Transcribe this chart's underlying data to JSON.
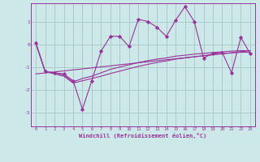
{
  "bg_color": "#cce8e8",
  "grid_color": "#aacccc",
  "line_color": "#993399",
  "xlabel": "Windchill (Refroidissement éolien,°C)",
  "xlabel_color": "#993399",
  "xticks": [
    0,
    1,
    2,
    3,
    4,
    5,
    6,
    7,
    8,
    9,
    10,
    11,
    12,
    13,
    14,
    15,
    16,
    17,
    18,
    19,
    20,
    21,
    22,
    23
  ],
  "yticks": [
    -3,
    -2,
    -1,
    0,
    1
  ],
  "ylim": [
    -3.6,
    1.8
  ],
  "xlim": [
    -0.5,
    23.5
  ],
  "series1_x": [
    0,
    1,
    2,
    3,
    4,
    5,
    6,
    7,
    8,
    9,
    10,
    11,
    12,
    13,
    14,
    15,
    16,
    17,
    18,
    19,
    20,
    21,
    22,
    23
  ],
  "series1_y": [
    0.05,
    -1.2,
    -1.25,
    -1.3,
    -1.6,
    -2.85,
    -1.6,
    -0.3,
    0.35,
    0.35,
    -0.1,
    1.1,
    1.0,
    0.75,
    0.35,
    1.05,
    1.65,
    1.0,
    -0.6,
    -0.4,
    -0.35,
    -1.25,
    0.3,
    -0.4
  ],
  "series2_x": [
    0,
    1,
    2,
    3,
    4,
    5,
    6,
    7,
    8,
    9,
    10,
    11,
    12,
    13,
    14,
    15,
    16,
    17,
    18,
    19,
    20,
    21,
    22,
    23
  ],
  "series2_y": [
    0.05,
    -1.2,
    -1.25,
    -1.35,
    -1.65,
    -1.5,
    -1.4,
    -1.25,
    -1.1,
    -1.0,
    -0.9,
    -0.8,
    -0.72,
    -0.65,
    -0.6,
    -0.52,
    -0.48,
    -0.43,
    -0.4,
    -0.36,
    -0.33,
    -0.3,
    -0.28,
    -0.28
  ],
  "series3_x": [
    0,
    1,
    2,
    3,
    4,
    5,
    6,
    7,
    8,
    9,
    10,
    11,
    12,
    13,
    14,
    15,
    16,
    17,
    18,
    19,
    20,
    21,
    22,
    23
  ],
  "series3_y": [
    0.05,
    -1.2,
    -1.3,
    -1.4,
    -1.7,
    -1.6,
    -1.5,
    -1.4,
    -1.28,
    -1.18,
    -1.07,
    -0.97,
    -0.88,
    -0.8,
    -0.73,
    -0.65,
    -0.6,
    -0.55,
    -0.5,
    -0.45,
    -0.41,
    -0.38,
    -0.35,
    -0.35
  ],
  "series4_x": [
    0,
    23
  ],
  "series4_y": [
    -1.3,
    -0.28
  ]
}
